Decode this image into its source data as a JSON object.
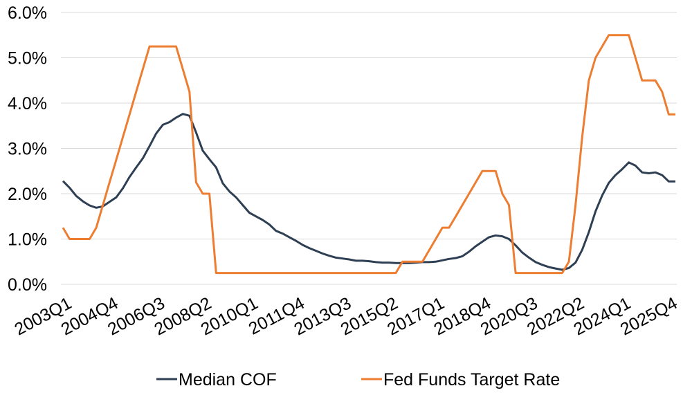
{
  "chart_data": {
    "type": "line",
    "title": "",
    "xlabel": "",
    "ylabel": "",
    "ylim": [
      0,
      6
    ],
    "y_ticks": [
      "0.0%",
      "1.0%",
      "2.0%",
      "3.0%",
      "4.0%",
      "5.0%",
      "6.0%"
    ],
    "x_tick_labels": [
      "2003Q1",
      "2004Q4",
      "2006Q3",
      "2008Q2",
      "2010Q1",
      "2011Q4",
      "2013Q3",
      "2015Q2",
      "2017Q1",
      "2018Q4",
      "2020Q3",
      "2022Q2",
      "2024Q1",
      "2025Q4"
    ],
    "x_tick_index": [
      0,
      7,
      14,
      21,
      28,
      35,
      42,
      49,
      56,
      63,
      70,
      77,
      84,
      91
    ],
    "grid": "horizontal",
    "legend_position": "bottom",
    "categories": [
      "2003Q1",
      "2003Q2",
      "2003Q3",
      "2003Q4",
      "2004Q1",
      "2004Q2",
      "2004Q3",
      "2004Q4",
      "2005Q1",
      "2005Q2",
      "2005Q3",
      "2005Q4",
      "2006Q1",
      "2006Q2",
      "2006Q3",
      "2006Q4",
      "2007Q1",
      "2007Q2",
      "2007Q3",
      "2007Q4",
      "2008Q1",
      "2008Q2",
      "2008Q3",
      "2008Q4",
      "2009Q1",
      "2009Q2",
      "2009Q3",
      "2009Q4",
      "2010Q1",
      "2010Q2",
      "2010Q3",
      "2010Q4",
      "2011Q1",
      "2011Q2",
      "2011Q3",
      "2011Q4",
      "2012Q1",
      "2012Q2",
      "2012Q3",
      "2012Q4",
      "2013Q1",
      "2013Q2",
      "2013Q3",
      "2013Q4",
      "2014Q1",
      "2014Q2",
      "2014Q3",
      "2014Q4",
      "2015Q1",
      "2015Q2",
      "2015Q3",
      "2015Q4",
      "2016Q1",
      "2016Q2",
      "2016Q3",
      "2016Q4",
      "2017Q1",
      "2017Q2",
      "2017Q3",
      "2017Q4",
      "2018Q1",
      "2018Q2",
      "2018Q3",
      "2018Q4",
      "2019Q1",
      "2019Q2",
      "2019Q3",
      "2019Q4",
      "2020Q1",
      "2020Q2",
      "2020Q3",
      "2020Q4",
      "2021Q1",
      "2021Q2",
      "2021Q3",
      "2021Q4",
      "2022Q1",
      "2022Q2",
      "2022Q3",
      "2022Q4",
      "2023Q1",
      "2023Q2",
      "2023Q3",
      "2023Q4",
      "2024Q1",
      "2024Q2",
      "2024Q3",
      "2024Q4",
      "2025Q1",
      "2025Q2",
      "2025Q3",
      "2025Q4",
      "2026Q1"
    ],
    "series": [
      {
        "name": "Median COF",
        "color": "#2e3f53",
        "values": [
          2.28,
          2.13,
          1.95,
          1.83,
          1.74,
          1.69,
          1.72,
          1.82,
          1.92,
          2.12,
          2.37,
          2.58,
          2.78,
          3.05,
          3.33,
          3.52,
          3.58,
          3.68,
          3.76,
          3.72,
          3.35,
          2.95,
          2.76,
          2.58,
          2.23,
          2.05,
          1.92,
          1.75,
          1.58,
          1.5,
          1.42,
          1.32,
          1.18,
          1.12,
          1.04,
          0.96,
          0.87,
          0.8,
          0.74,
          0.68,
          0.63,
          0.59,
          0.57,
          0.55,
          0.52,
          0.52,
          0.51,
          0.49,
          0.48,
          0.48,
          0.47,
          0.47,
          0.47,
          0.48,
          0.49,
          0.49,
          0.5,
          0.53,
          0.56,
          0.58,
          0.62,
          0.72,
          0.84,
          0.94,
          1.04,
          1.08,
          1.06,
          1.0,
          0.86,
          0.7,
          0.59,
          0.49,
          0.43,
          0.38,
          0.35,
          0.32,
          0.36,
          0.48,
          0.76,
          1.15,
          1.61,
          1.96,
          2.24,
          2.41,
          2.54,
          2.69,
          2.62,
          2.47,
          2.45,
          2.47,
          2.41,
          2.27,
          2.27
        ]
      },
      {
        "name": "Fed Funds Target Rate",
        "color": "#ed7d31",
        "values": [
          1.25,
          1.0,
          1.0,
          1.0,
          1.0,
          1.25,
          1.75,
          2.25,
          2.75,
          3.25,
          3.75,
          4.25,
          4.75,
          5.25,
          5.25,
          5.25,
          5.25,
          5.25,
          4.75,
          4.25,
          2.25,
          2.0,
          2.0,
          0.25,
          0.25,
          0.25,
          0.25,
          0.25,
          0.25,
          0.25,
          0.25,
          0.25,
          0.25,
          0.25,
          0.25,
          0.25,
          0.25,
          0.25,
          0.25,
          0.25,
          0.25,
          0.25,
          0.25,
          0.25,
          0.25,
          0.25,
          0.25,
          0.25,
          0.25,
          0.25,
          0.25,
          0.5,
          0.5,
          0.5,
          0.5,
          0.75,
          1.0,
          1.25,
          1.25,
          1.5,
          1.75,
          2.0,
          2.25,
          2.5,
          2.5,
          2.5,
          2.0,
          1.75,
          0.25,
          0.25,
          0.25,
          0.25,
          0.25,
          0.25,
          0.25,
          0.25,
          0.5,
          1.75,
          3.25,
          4.5,
          5.0,
          5.25,
          5.5,
          5.5,
          5.5,
          5.5,
          5.0,
          4.5,
          4.5,
          4.5,
          4.25,
          3.75,
          3.75
        ]
      }
    ]
  }
}
